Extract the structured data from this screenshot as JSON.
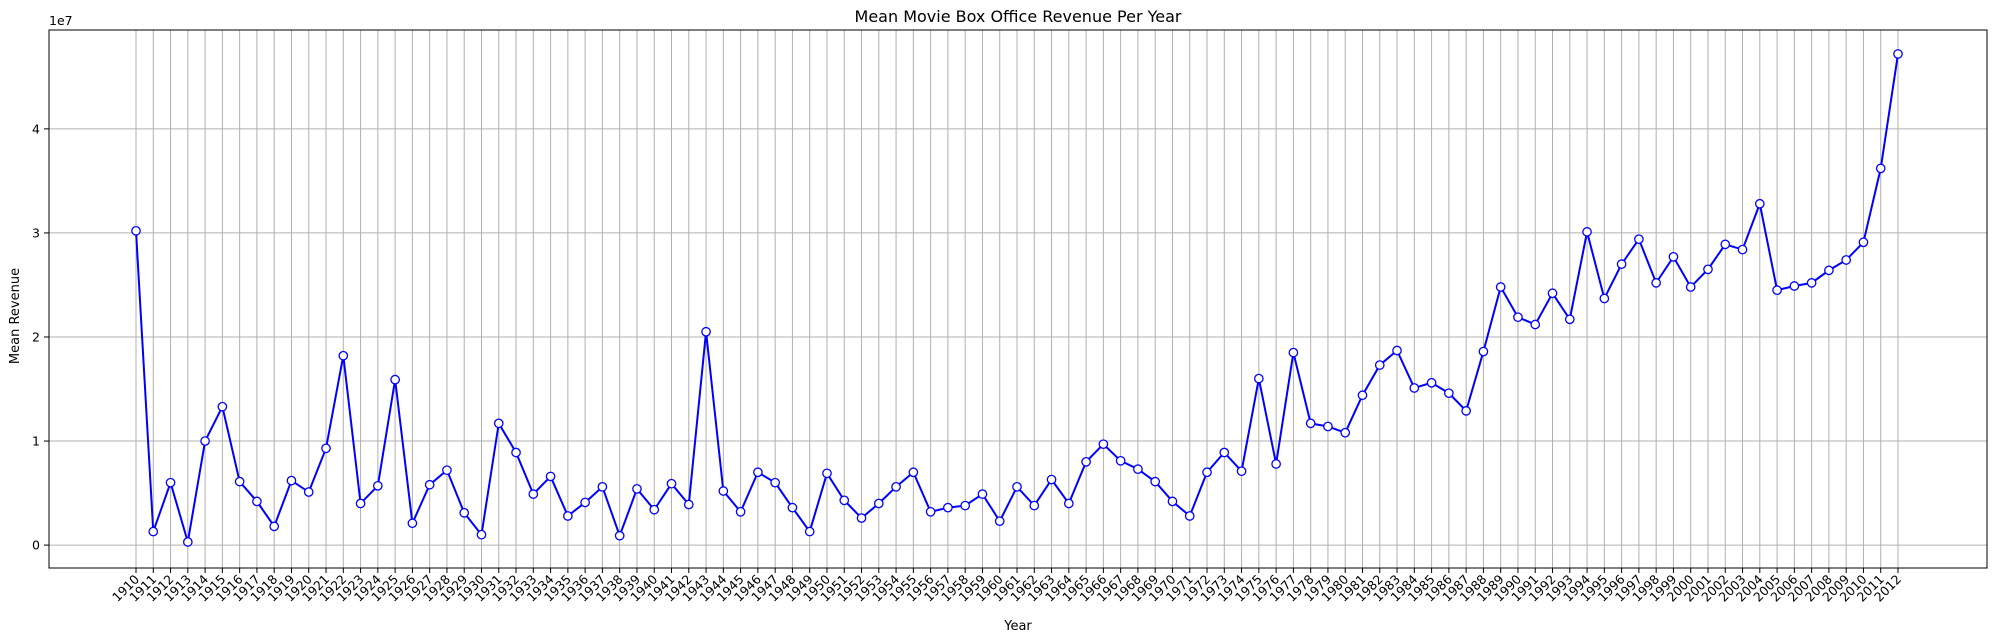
{
  "chart_data": {
    "type": "line",
    "title": "Mean Movie Box Office Revenue Per Year",
    "xlabel": "Year",
    "ylabel": "Mean Revenue",
    "y_offset_label": "1e7",
    "y_tick_labels": [
      "0",
      "1",
      "2",
      "3",
      "4"
    ],
    "y_ticks": [
      0,
      10000000,
      20000000,
      30000000,
      40000000
    ],
    "ylim": [
      -2200000,
      49500000
    ],
    "grid": true,
    "marker": "circle",
    "colors": {
      "line": "#0000ff",
      "marker_face": "#ffffff",
      "grid": "#b0b0b0"
    },
    "x": [
      1910,
      1911,
      1912,
      1913,
      1914,
      1915,
      1916,
      1917,
      1918,
      1919,
      1920,
      1921,
      1922,
      1923,
      1924,
      1925,
      1926,
      1927,
      1928,
      1929,
      1930,
      1931,
      1932,
      1933,
      1934,
      1935,
      1936,
      1937,
      1938,
      1939,
      1940,
      1941,
      1942,
      1943,
      1944,
      1945,
      1946,
      1947,
      1948,
      1949,
      1950,
      1951,
      1952,
      1953,
      1954,
      1955,
      1956,
      1957,
      1958,
      1959,
      1960,
      1961,
      1962,
      1963,
      1964,
      1965,
      1966,
      1967,
      1968,
      1969,
      1970,
      1971,
      1972,
      1973,
      1974,
      1975,
      1976,
      1977,
      1978,
      1979,
      1980,
      1981,
      1982,
      1983,
      1984,
      1985,
      1986,
      1987,
      1988,
      1989,
      1990,
      1991,
      1992,
      1993,
      1994,
      1995,
      1996,
      1997,
      1998,
      1999,
      2000,
      2001,
      2002,
      2003,
      2004,
      2005,
      2006,
      2007,
      2008,
      2009,
      2010,
      2011,
      2012
    ],
    "y": [
      30200000,
      1300000,
      6000000,
      300000,
      10000000,
      13300000,
      6100000,
      4200000,
      1800000,
      6200000,
      5100000,
      9300000,
      18200000,
      4000000,
      5700000,
      15900000,
      2100000,
      5800000,
      7200000,
      3100000,
      1000000,
      11700000,
      8900000,
      4900000,
      6600000,
      2800000,
      4100000,
      5600000,
      900000,
      5400000,
      3400000,
      5900000,
      3900000,
      20500000,
      5200000,
      3200000,
      7000000,
      6000000,
      3600000,
      1300000,
      6900000,
      4300000,
      2600000,
      4000000,
      5600000,
      7000000,
      3200000,
      3600000,
      3800000,
      4900000,
      2300000,
      5600000,
      3800000,
      6300000,
      4000000,
      8000000,
      9700000,
      8100000,
      7300000,
      6100000,
      4200000,
      2800000,
      7000000,
      8900000,
      7100000,
      16000000,
      7800000,
      18500000,
      11700000,
      11400000,
      10800000,
      14400000,
      17300000,
      18700000,
      15100000,
      15600000,
      14600000,
      12900000,
      18600000,
      24800000,
      21900000,
      21200000,
      24200000,
      21700000,
      30100000,
      23700000,
      27000000,
      29400000,
      25200000,
      27700000,
      24800000,
      26500000,
      28900000,
      28400000,
      32800000,
      24500000,
      24900000,
      25200000,
      26400000,
      27400000,
      29100000,
      36200000,
      47200000
    ]
  }
}
